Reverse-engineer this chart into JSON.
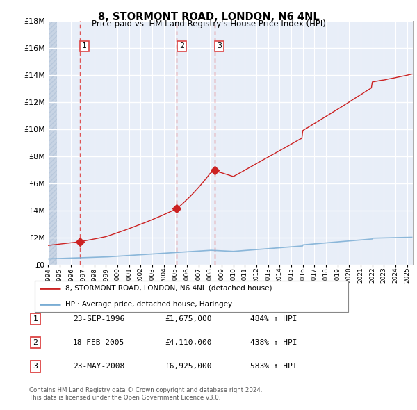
{
  "title": "8, STORMONT ROAD, LONDON, N6 4NL",
  "subtitle": "Price paid vs. HM Land Registry's House Price Index (HPI)",
  "ylabel_ticks": [
    "£0",
    "£2M",
    "£4M",
    "£6M",
    "£8M",
    "£10M",
    "£12M",
    "£14M",
    "£16M",
    "£18M"
  ],
  "ytick_values": [
    0,
    2000000,
    4000000,
    6000000,
    8000000,
    10000000,
    12000000,
    14000000,
    16000000,
    18000000
  ],
  "ylim": [
    0,
    18000000
  ],
  "xlim_start": 1994.0,
  "xlim_end": 2025.5,
  "hpi_color": "#7aadd4",
  "price_color": "#cc2222",
  "sale_points": [
    {
      "year": 1996.73,
      "price": 1675000,
      "label": "1"
    },
    {
      "year": 2005.12,
      "price": 4110000,
      "label": "2"
    },
    {
      "year": 2008.39,
      "price": 6925000,
      "label": "3"
    }
  ],
  "legend_line1": "8, STORMONT ROAD, LONDON, N6 4NL (detached house)",
  "legend_line2": "HPI: Average price, detached house, Haringey",
  "table_rows": [
    {
      "num": "1",
      "date": "23-SEP-1996",
      "price": "£1,675,000",
      "pct": "484% ↑ HPI"
    },
    {
      "num": "2",
      "date": "18-FEB-2005",
      "price": "£4,110,000",
      "pct": "438% ↑ HPI"
    },
    {
      "num": "3",
      "date": "23-MAY-2008",
      "price": "£6,925,000",
      "pct": "583% ↑ HPI"
    }
  ],
  "footnote1": "Contains HM Land Registry data © Crown copyright and database right 2024.",
  "footnote2": "This data is licensed under the Open Government Licence v3.0.",
  "background_chart": "#e8eef8",
  "grid_color": "#ffffff",
  "dashed_line_color": "#dd4444"
}
